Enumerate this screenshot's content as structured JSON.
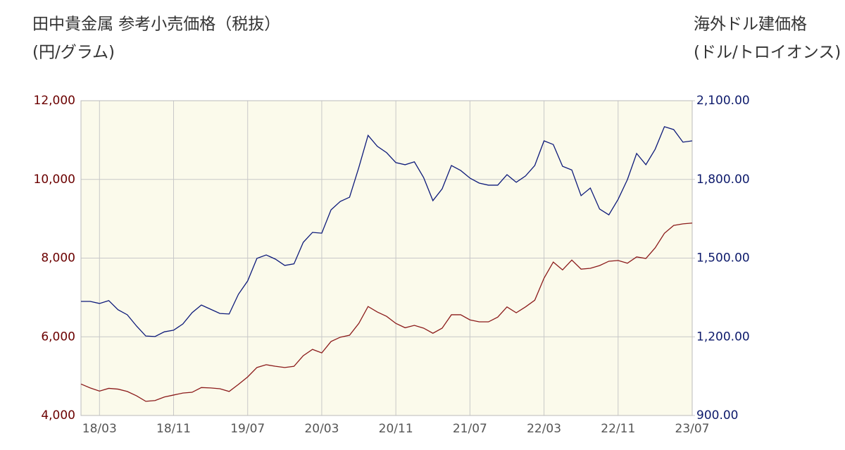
{
  "chart_data": {
    "type": "line",
    "ylabel": "田中貴金属 参考小売価格（税抜）",
    "ylabel_unit": "(円/グラム)",
    "y2label": "海外ドル建価格",
    "y2label_unit": "(ドル/トロイオンス)",
    "categories": [
      null,
      null,
      "18/03",
      null,
      null,
      null,
      null,
      null,
      null,
      null,
      "18/11",
      null,
      null,
      null,
      null,
      null,
      null,
      null,
      "19/07",
      null,
      null,
      null,
      null,
      null,
      null,
      null,
      "20/03",
      null,
      null,
      null,
      null,
      null,
      null,
      null,
      "20/11",
      null,
      null,
      null,
      null,
      null,
      null,
      null,
      "21/07",
      null,
      null,
      null,
      null,
      null,
      null,
      null,
      "22/03",
      null,
      null,
      null,
      null,
      null,
      null,
      null,
      "22/11",
      null,
      null,
      null,
      null,
      null,
      null,
      null,
      "23/07"
    ],
    "series": [
      {
        "color": "#8b1a1a",
        "values": [
          4800,
          4700,
          4620,
          4690,
          4670,
          4610,
          4500,
          4360,
          4380,
          4470,
          4520,
          4570,
          4590,
          4710,
          4700,
          4680,
          4610,
          4790,
          4980,
          5220,
          5290,
          5250,
          5220,
          5250,
          5520,
          5680,
          5590,
          5880,
          5990,
          6040,
          6340,
          6770,
          6630,
          6520,
          6340,
          6230,
          6290,
          6220,
          6090,
          6220,
          6560,
          6560,
          6430,
          6380,
          6380,
          6500,
          6760,
          6610,
          6760,
          6930,
          7490,
          7900,
          7700,
          7950,
          7720,
          7740,
          7810,
          7920,
          7940,
          7870,
          8030,
          7990,
          8260,
          8630,
          8830,
          8870,
          8890
        ]
      },
      {
        "color": "#0d1a7a",
        "axis": "y2",
        "values": [
          1335,
          1335,
          1327,
          1338,
          1303,
          1284,
          1241,
          1203,
          1201,
          1219,
          1225,
          1249,
          1292,
          1321,
          1305,
          1289,
          1287,
          1362,
          1413,
          1499,
          1512,
          1496,
          1472,
          1478,
          1560,
          1598,
          1595,
          1684,
          1716,
          1732,
          1845,
          1968,
          1926,
          1902,
          1864,
          1856,
          1867,
          1807,
          1719,
          1764,
          1853,
          1834,
          1805,
          1786,
          1778,
          1778,
          1818,
          1789,
          1813,
          1853,
          1947,
          1933,
          1850,
          1836,
          1738,
          1767,
          1687,
          1665,
          1724,
          1799,
          1899,
          1856,
          1915,
          2001,
          1990,
          1942,
          1947
        ]
      }
    ],
    "ylim": [
      4000,
      12000
    ],
    "yticks": [
      {
        "value": 4000,
        "label": "4,000"
      },
      {
        "value": 6000,
        "label": "6,000"
      },
      {
        "value": 8000,
        "label": "8,000"
      },
      {
        "value": 10000,
        "label": "10,000"
      },
      {
        "value": 12000,
        "label": "12,000"
      }
    ],
    "y2lim": [
      900,
      2100
    ],
    "y2ticks": [
      {
        "value": 900,
        "label": "900.00"
      },
      {
        "value": 1200,
        "label": "1,200.00"
      },
      {
        "value": 1500,
        "label": "1,500.00"
      },
      {
        "value": 1800,
        "label": "1,800.00"
      },
      {
        "value": 2100,
        "label": "2,100.00"
      }
    ],
    "ytick_color": "#6b0000",
    "y2tick_color": "#0d1a6b",
    "plot_background": "#fbfaeb",
    "grid": true
  }
}
